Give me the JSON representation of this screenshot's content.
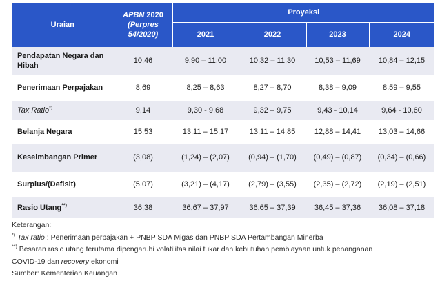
{
  "header": {
    "uraian": "Uraian",
    "apbn_line1": "APBN",
    "apbn_line1_year": "2020",
    "apbn_line2": "(Perpres",
    "apbn_line3": "54/2020)",
    "proyeksi": "Proyeksi",
    "years": [
      "2021",
      "2022",
      "2023",
      "2024"
    ]
  },
  "rows": [
    {
      "label": "Pendapatan Negara dan Hibah",
      "apbn": "10,46",
      "y2021": "9,90 – 11,00",
      "y2022": "10,32 – 11,30",
      "y2023": "10,53 – 11,69",
      "y2024": "10,84 – 12,15"
    },
    {
      "label": "Penerimaan Perpajakan",
      "apbn": "8,69",
      "y2021": "8,25 – 8,63",
      "y2022": "8,27 – 8,70",
      "y2023": "8,38 – 9,09",
      "y2024": "8,59 – 9,55"
    },
    {
      "label": "Tax Ratio",
      "label_sup": "*)",
      "apbn": "9,14",
      "y2021": "9,30 - 9,68",
      "y2022": "9,32 – 9,75",
      "y2023": "9,43 - 10,14",
      "y2024": "9,64 - 10,60"
    },
    {
      "label": "Belanja Negara",
      "apbn": "15,53",
      "y2021": "13,11 – 15,17",
      "y2022": "13,11 – 14,85",
      "y2023": "12,88 – 14,41",
      "y2024": "13,03 – 14,66"
    },
    {
      "label": "Keseimbangan Primer",
      "apbn": "(3,08)",
      "y2021": "(1,24) – (2,07)",
      "y2022": "(0,94) – (1,70)",
      "y2023": "(0,49) – (0,87)",
      "y2024": "(0,34) – (0,66)"
    },
    {
      "label": "Surplus/(Defisit)",
      "apbn": "(5,07)",
      "y2021": "(3,21) – (4,17)",
      "y2022": "(2,79) – (3,55)",
      "y2023": "(2,35) – (2,72)",
      "y2024": "(2,19) – (2,51)"
    },
    {
      "label": "Rasio Utang",
      "label_sup": "**)",
      "apbn": "36,38",
      "y2021": "36,67 – 37,97",
      "y2022": "36,65 – 37,39",
      "y2023": "36,45 – 37,36",
      "y2024": "36,08 – 37,18"
    }
  ],
  "notes": {
    "keterangan": "Keterangan:",
    "note1_mark": "*)",
    "note1_italic": "Tax ratio",
    "note1_text": ": Penerimaan perpajakan + PNBP SDA Migas dan PNBP SDA Pertambangan Minerba",
    "note2_mark": "**)",
    "note2_text": "Besaran rasio utang terutama dipengaruhi volatilitas nilai tukar dan kebutuhan pembiayaan untuk penanganan",
    "note2_cont_a": "COVID-19 dan",
    "note2_cont_italic": "recovery",
    "note2_cont_b": "ekonomi",
    "sumber": "Sumber: Kementerian Keuangan"
  },
  "colors": {
    "header_bg": "#2a57c8",
    "row_shade": "#e9eaf2"
  }
}
